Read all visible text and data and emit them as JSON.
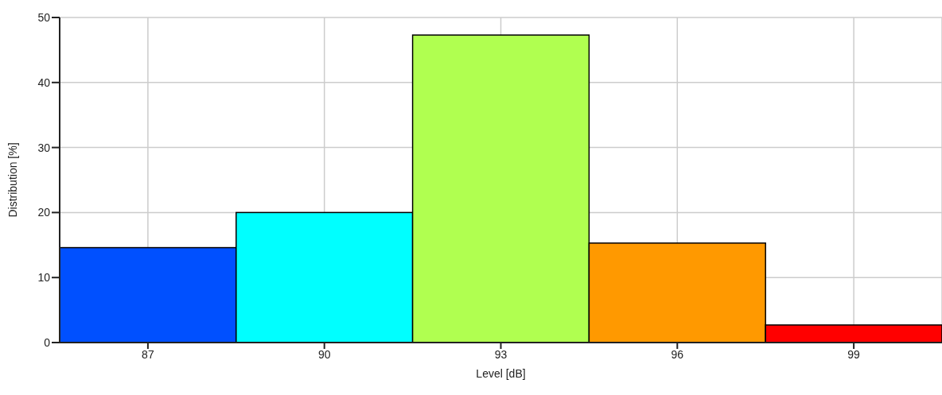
{
  "chart_data": {
    "type": "histogram",
    "xlabel": "Level [dB]",
    "ylabel": "Distribution [%]",
    "bins": [
      85.5,
      88.5,
      91.5,
      94.5,
      97.5,
      100.5
    ],
    "values": [
      14.6,
      20.0,
      47.3,
      15.3,
      2.7
    ],
    "colors": [
      "#0050ff",
      "#00ffff",
      "#b0ff50",
      "#ff9900",
      "#ff0000"
    ],
    "xlim": [
      85.5,
      100.5
    ],
    "xticks": [
      87,
      90,
      93,
      96,
      99
    ],
    "ylim": [
      0,
      50
    ],
    "yticks": [
      0,
      10,
      20,
      30,
      40,
      50
    ],
    "grid": true
  }
}
